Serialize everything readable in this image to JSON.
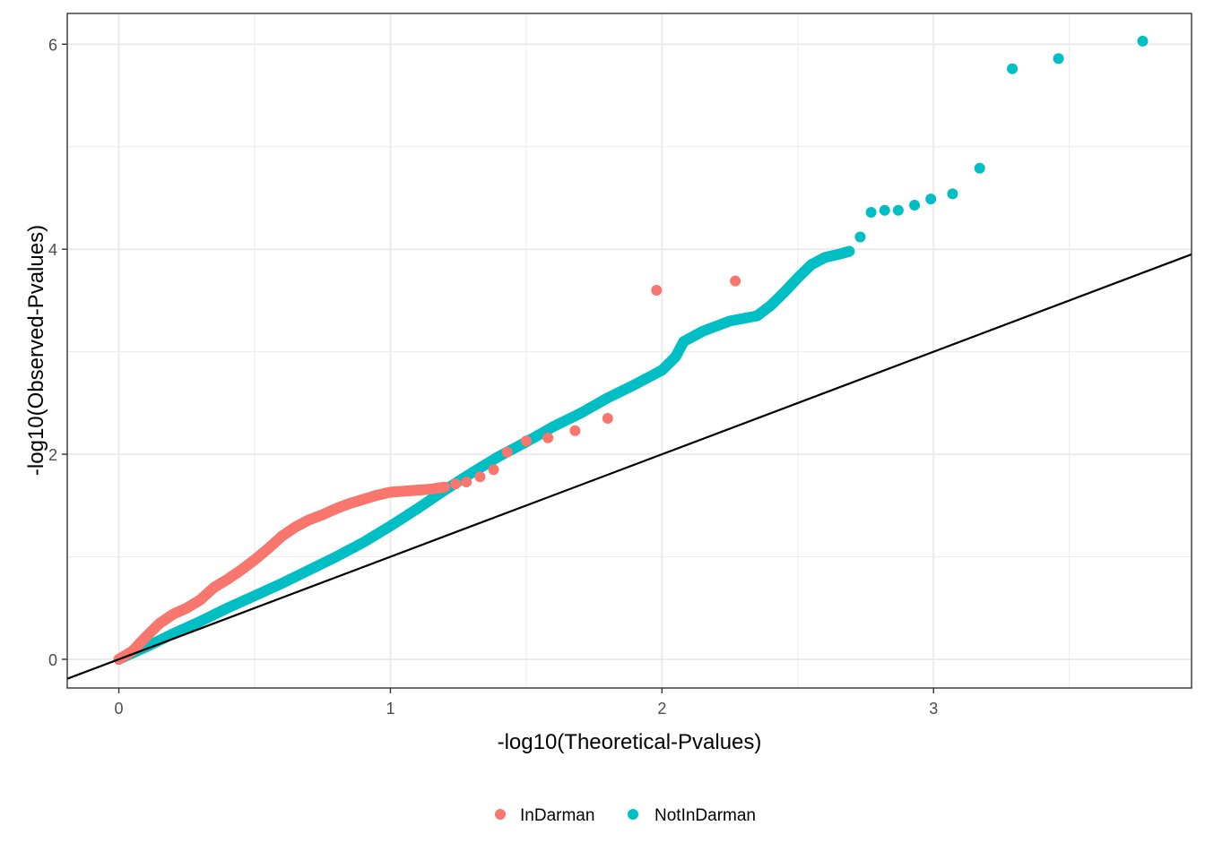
{
  "chart_data": {
    "type": "scatter",
    "xlabel": "-log10(Theoretical-Pvalues)",
    "ylabel": "-log10(Observed-Pvalues)",
    "xlim": [
      -0.19,
      3.95
    ],
    "ylim": [
      -0.28,
      6.3
    ],
    "x_ticks": [
      "0",
      "1",
      "2",
      "3"
    ],
    "y_ticks": [
      "0",
      "2",
      "4",
      "6"
    ],
    "grid": true,
    "legend_position": "bottom",
    "reference_line": {
      "intercept": 0,
      "slope": 1,
      "color": "#000000"
    },
    "series": [
      {
        "name": "InDarman",
        "color": "#F8766D",
        "curve": [
          [
            0.0,
            0.0
          ],
          [
            0.05,
            0.08
          ],
          [
            0.1,
            0.22
          ],
          [
            0.15,
            0.35
          ],
          [
            0.2,
            0.44
          ],
          [
            0.25,
            0.5
          ],
          [
            0.3,
            0.58
          ],
          [
            0.35,
            0.7
          ],
          [
            0.4,
            0.78
          ],
          [
            0.45,
            0.87
          ],
          [
            0.5,
            0.97
          ],
          [
            0.55,
            1.08
          ],
          [
            0.6,
            1.2
          ],
          [
            0.65,
            1.29
          ],
          [
            0.7,
            1.36
          ],
          [
            0.75,
            1.41
          ],
          [
            0.8,
            1.47
          ],
          [
            0.85,
            1.52
          ],
          [
            0.9,
            1.56
          ],
          [
            0.95,
            1.6
          ],
          [
            1.0,
            1.63
          ],
          [
            1.05,
            1.64
          ],
          [
            1.1,
            1.65
          ],
          [
            1.15,
            1.66
          ],
          [
            1.2,
            1.68
          ]
        ],
        "points": [
          [
            1.24,
            1.71
          ],
          [
            1.28,
            1.73
          ],
          [
            1.33,
            1.78
          ],
          [
            1.38,
            1.85
          ],
          [
            1.43,
            2.02
          ],
          [
            1.5,
            2.13
          ],
          [
            1.58,
            2.16
          ],
          [
            1.68,
            2.23
          ],
          [
            1.8,
            2.35
          ],
          [
            1.98,
            3.6
          ],
          [
            2.27,
            3.69
          ]
        ]
      },
      {
        "name": "NotInDarman",
        "color": "#00BFC4",
        "curve": [
          [
            0.0,
            0.0
          ],
          [
            0.1,
            0.12
          ],
          [
            0.2,
            0.25
          ],
          [
            0.3,
            0.37
          ],
          [
            0.4,
            0.5
          ],
          [
            0.5,
            0.62
          ],
          [
            0.6,
            0.74
          ],
          [
            0.7,
            0.87
          ],
          [
            0.8,
            1.0
          ],
          [
            0.9,
            1.14
          ],
          [
            1.0,
            1.3
          ],
          [
            1.1,
            1.47
          ],
          [
            1.2,
            1.65
          ],
          [
            1.3,
            1.82
          ],
          [
            1.4,
            1.98
          ],
          [
            1.5,
            2.12
          ],
          [
            1.6,
            2.27
          ],
          [
            1.7,
            2.4
          ],
          [
            1.8,
            2.55
          ],
          [
            1.9,
            2.68
          ],
          [
            2.0,
            2.82
          ],
          [
            2.05,
            2.95
          ],
          [
            2.08,
            3.1
          ],
          [
            2.15,
            3.2
          ],
          [
            2.25,
            3.3
          ],
          [
            2.35,
            3.35
          ],
          [
            2.4,
            3.45
          ],
          [
            2.45,
            3.58
          ],
          [
            2.5,
            3.72
          ],
          [
            2.55,
            3.85
          ],
          [
            2.6,
            3.92
          ],
          [
            2.65,
            3.95
          ],
          [
            2.69,
            3.98
          ]
        ],
        "points": [
          [
            2.73,
            4.12
          ],
          [
            2.77,
            4.36
          ],
          [
            2.82,
            4.38
          ],
          [
            2.87,
            4.38
          ],
          [
            2.93,
            4.43
          ],
          [
            2.99,
            4.49
          ],
          [
            3.07,
            4.54
          ],
          [
            3.17,
            4.79
          ],
          [
            3.29,
            5.76
          ],
          [
            3.46,
            5.86
          ],
          [
            3.77,
            6.03
          ]
        ]
      }
    ]
  }
}
